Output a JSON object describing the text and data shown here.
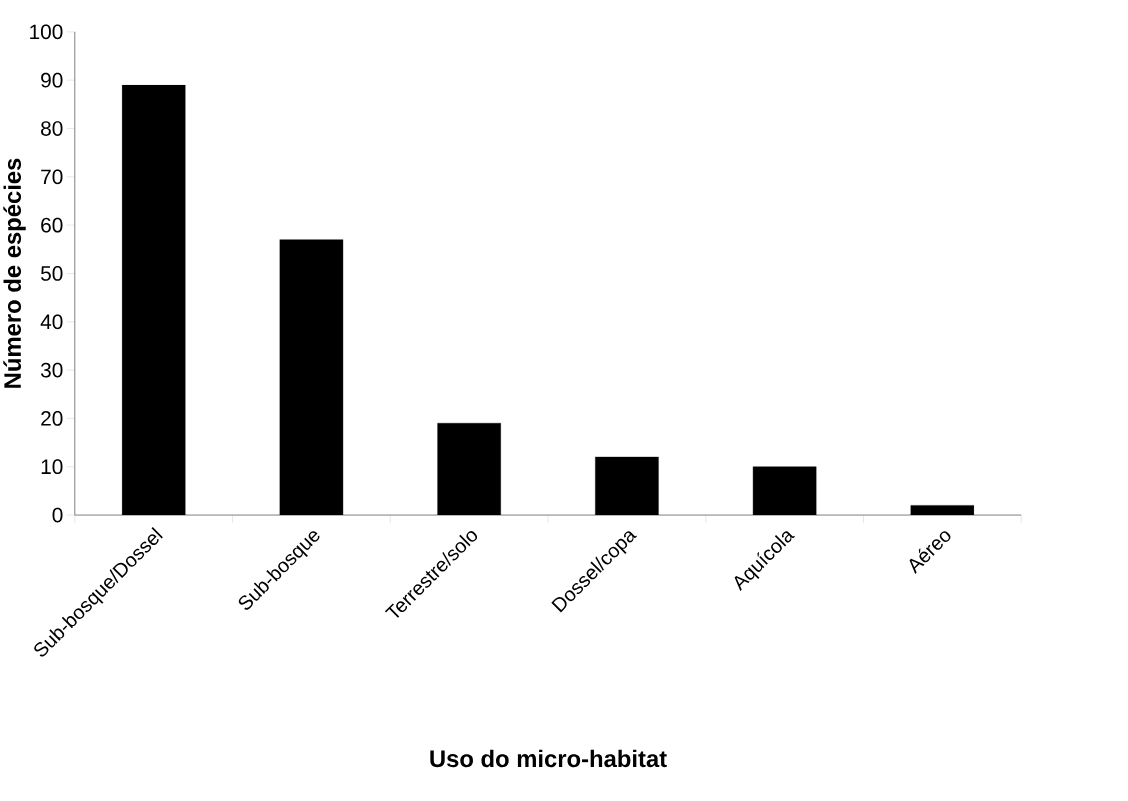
{
  "chart_data": {
    "type": "bar",
    "xlabel": "Uso do micro-habitat",
    "ylabel": "Número de espécies",
    "categories": [
      "Sub-bosque/Dossel",
      "Sub-bosque",
      "Terrestre/solo",
      "Dossel/copa",
      "Aquícola",
      "Aéreo"
    ],
    "values": [
      89,
      57,
      19,
      12,
      10,
      2
    ],
    "color": "#000000",
    "ylim": [
      0,
      100
    ],
    "yticks": [
      0,
      10,
      20,
      30,
      40,
      50,
      60,
      70,
      80,
      90,
      100
    ],
    "grid": false
  }
}
